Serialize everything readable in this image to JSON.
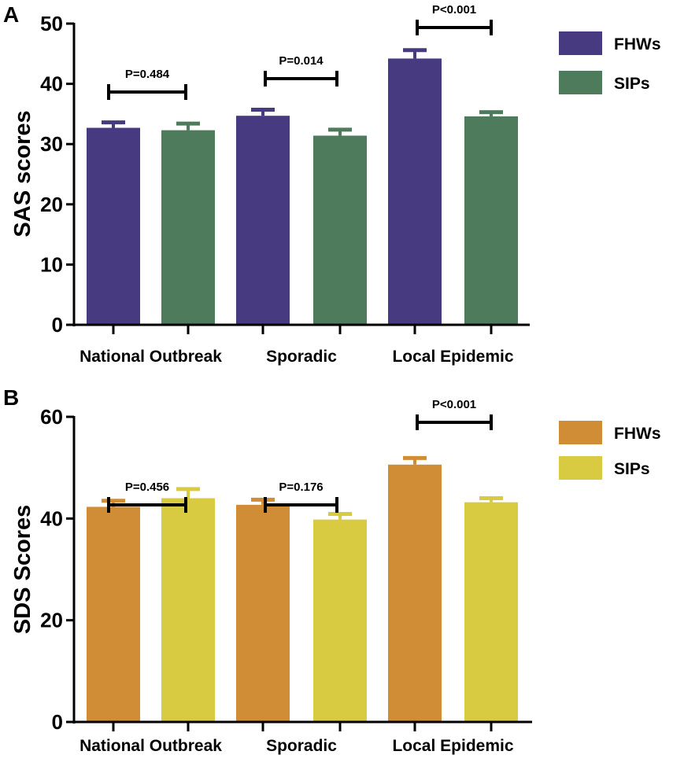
{
  "chart_data": [
    {
      "type": "bar",
      "panel_label": "A",
      "ylabel": "SAS scores",
      "xlabel": "",
      "ylim": [
        0,
        50
      ],
      "yticks": [
        "0",
        "10",
        "20",
        "30",
        "40",
        "50"
      ],
      "categories": [
        "National Outbreak",
        "Sporadic",
        "Local Epidemic"
      ],
      "legend_position": "right",
      "series": [
        {
          "name": "FHWs",
          "color": "#473a80",
          "values": [
            32.7,
            34.7,
            44.2
          ],
          "errors": [
            0.9,
            1.0,
            1.4
          ]
        },
        {
          "name": "SIPs",
          "color": "#4f7b5d",
          "values": [
            32.3,
            31.4,
            34.6
          ],
          "errors": [
            1.1,
            1.0,
            0.7
          ]
        }
      ],
      "annotations": [
        "P=0.484",
        "P=0.014",
        "P<0.001"
      ]
    },
    {
      "type": "bar",
      "panel_label": "B",
      "ylabel": "SDS Scores",
      "xlabel": "",
      "ylim": [
        0,
        60
      ],
      "yticks": [
        "0",
        "20",
        "40",
        "60"
      ],
      "categories": [
        "National Outbreak",
        "Sporadic",
        "Local Epidemic"
      ],
      "legend_position": "right",
      "series": [
        {
          "name": "FHWs",
          "color": "#d18c36",
          "values": [
            42.3,
            42.7,
            50.6
          ],
          "errors": [
            1.2,
            1.0,
            1.3
          ]
        },
        {
          "name": "SIPs",
          "color": "#d9cb41",
          "values": [
            44.0,
            39.8,
            43.2
          ],
          "errors": [
            1.8,
            1.1,
            0.8
          ]
        }
      ],
      "annotations": [
        "P=0.456",
        "P=0.176",
        "P<0.001"
      ]
    }
  ]
}
